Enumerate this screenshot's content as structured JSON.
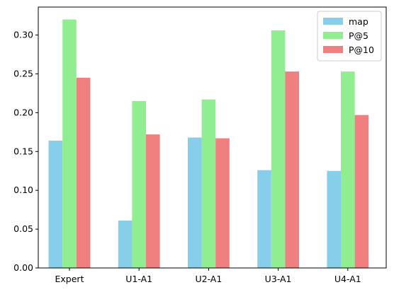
{
  "chart_data": {
    "type": "bar",
    "title": "",
    "xlabel": "",
    "ylabel": "",
    "categories": [
      "Expert",
      "U1-A1",
      "U2-A1",
      "U3-A1",
      "U4-A1"
    ],
    "series": [
      {
        "name": "map",
        "color": "#87ceeb",
        "values": [
          0.164,
          0.061,
          0.168,
          0.126,
          0.125
        ]
      },
      {
        "name": "P@5",
        "color": "#90ee90",
        "values": [
          0.32,
          0.215,
          0.217,
          0.306,
          0.253
        ]
      },
      {
        "name": "P@10",
        "color": "#f08080",
        "values": [
          0.245,
          0.172,
          0.167,
          0.253,
          0.197
        ]
      }
    ],
    "ylim": [
      0,
      0.336
    ],
    "yticks": [
      "0.00",
      "0.05",
      "0.10",
      "0.15",
      "0.20",
      "0.25",
      "0.30"
    ],
    "grid": false,
    "legend_position": "top-right"
  }
}
